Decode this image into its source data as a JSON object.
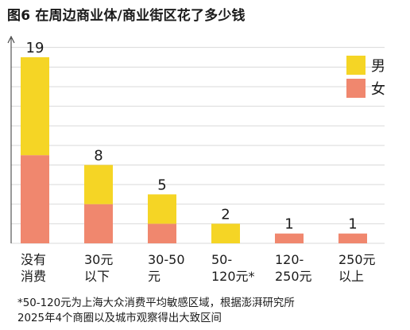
{
  "title": "图6 在周边商业体/商业街区花了多少钱",
  "footnote": {
    "line1": "*50-120元为上海大众消费平均敏感区域，根据澎湃研究所",
    "line2": "2025年4个商圈以及城市观察得出大致区间"
  },
  "colors": {
    "male": "#F5D525",
    "female": "#F0876E",
    "grid": "#d9d9d9",
    "axis": "#333333"
  },
  "chart_data": {
    "type": "bar",
    "stacked": true,
    "title": "图6 在周边商业体/商业街区花了多少钱",
    "categories": [
      [
        "没有",
        "消费"
      ],
      [
        "30元",
        "以下"
      ],
      [
        "30-50",
        "元"
      ],
      [
        "50-",
        "120元*"
      ],
      [
        "120-",
        "250元"
      ],
      [
        "250元",
        "以上"
      ]
    ],
    "series": [
      {
        "name": "女",
        "values": [
          9,
          4,
          2,
          0,
          1,
          1
        ]
      },
      {
        "name": "男",
        "values": [
          10,
          4,
          3,
          2,
          0,
          0
        ]
      }
    ],
    "totals": [
      "19",
      "8",
      "5",
      "2",
      "1",
      "1"
    ],
    "ylim": [
      0,
      19
    ],
    "grid": true,
    "legend": "top-right"
  }
}
